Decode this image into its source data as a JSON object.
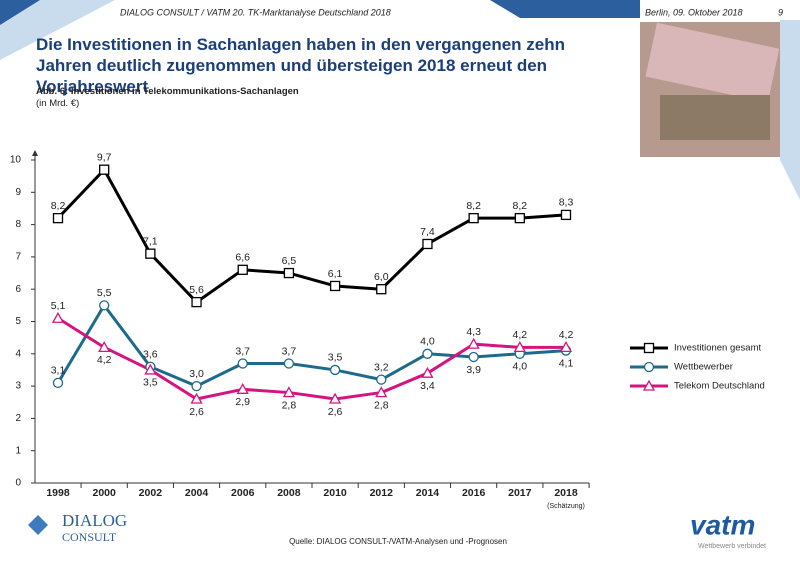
{
  "header": {
    "left": "DIALOG CONSULT / VATM 20. TK-Marktanalyse Deutschland 2018",
    "date": "Berlin, 09. Oktober 2018",
    "page": "9"
  },
  "chart_data": {
    "type": "line",
    "title": "Die Investitionen in Sachanlagen haben in den vergangenen zehn Jahren deutlich zugenommen und übersteigen 2018 erneut den Vorjahreswert",
    "subtitle": "Abb. 6: Investitionen in Telekommunikations-Sachanlagen",
    "unit": "(in Mrd. €)",
    "categories": [
      "1998",
      "2000",
      "2002",
      "2004",
      "2006",
      "2008",
      "2010",
      "2012",
      "2014",
      "2016",
      "2017",
      "2018"
    ],
    "x_note": "(Schätzung)",
    "series": [
      {
        "name": "Investitionen gesamt",
        "color": "#000000",
        "marker": "square",
        "values": [
          8.2,
          9.7,
          7.1,
          5.6,
          6.6,
          6.5,
          6.1,
          6.0,
          7.4,
          8.2,
          8.2,
          8.3
        ],
        "value_labels": [
          "8,2",
          "9,7",
          "7,1",
          "5,6",
          "6,6",
          "6,5",
          "6,1",
          "6,0",
          "7,4",
          "8,2",
          "8,2",
          "8,3"
        ]
      },
      {
        "name": "Wettbewerber",
        "color": "#1d6a8a",
        "marker": "circle",
        "values": [
          3.1,
          5.5,
          3.6,
          3.0,
          3.7,
          3.7,
          3.5,
          3.2,
          4.0,
          3.9,
          4.0,
          4.1
        ],
        "value_labels": [
          "3,1",
          "5,5",
          "3,6",
          "3,0",
          "3,7",
          "3,7",
          "3,5",
          "3,2",
          "4,0",
          "3,9",
          "4,0",
          "4,1"
        ]
      },
      {
        "name": "Telekom Deutschland",
        "color": "#d4147f",
        "marker": "triangle",
        "values": [
          5.1,
          4.2,
          3.5,
          2.6,
          2.9,
          2.8,
          2.6,
          2.8,
          3.4,
          4.3,
          4.2,
          4.2
        ],
        "value_labels": [
          "5,1",
          "4,2",
          "3,5",
          "2,6",
          "2,9",
          "2,8",
          "2,6",
          "2,8",
          "3,4",
          "4,3",
          "4,2",
          "4,2"
        ]
      }
    ],
    "ylim": [
      0,
      10
    ],
    "yticks": [
      0,
      1,
      2,
      3,
      4,
      5,
      6,
      7,
      8,
      9,
      10
    ],
    "legend": "right"
  },
  "footer": {
    "source": "Quelle: DIALOG CONSULT-/VATM-Analysen und -Prognosen",
    "logo_left": "DIALOG",
    "logo_left_sub": "CONSULT",
    "logo_right": "vatm",
    "logo_right_tagline": "Wettbewerb verbindet"
  }
}
